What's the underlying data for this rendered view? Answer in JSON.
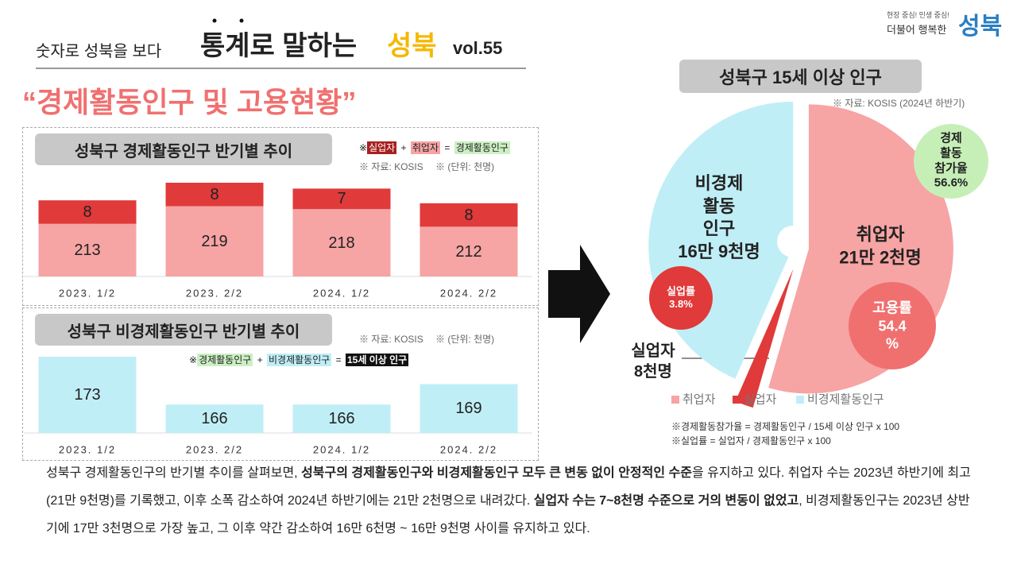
{
  "header": {
    "prefix": "숫자로 성북을 보다",
    "title1": "통계로 말하는",
    "title2": "성북",
    "vol": "vol.55",
    "logo_slogan": "현장 중심! 민생 중심!",
    "logo_text": "더불어 행복한",
    "logo_name": "성북"
  },
  "subtitle": "“경제활동인구 및 고용현황”",
  "chart_data": [
    {
      "type": "bar",
      "stacked": true,
      "title": "성북구 경제활동인구 반기별 추이",
      "notes": [
        "※ 자료: KOSIS",
        "※ (단위: 천명)"
      ],
      "formula": {
        "prefix": "※",
        "terms": [
          "실업자",
          "취업자",
          "경제활동인구"
        ],
        "ops": [
          "+",
          "="
        ]
      },
      "categories": [
        "2023. 1/2",
        "2023. 2/2",
        "2024. 1/2",
        "2024. 2/2"
      ],
      "series": [
        {
          "name": "취업자",
          "color": "#f7a4a4",
          "values": [
            213,
            219,
            218,
            212
          ]
        },
        {
          "name": "실업자",
          "color": "#e03a3a",
          "values": [
            8,
            8,
            7,
            8
          ]
        }
      ]
    },
    {
      "type": "bar",
      "title": "성북구 비경제활동인구 반기별 추이",
      "notes": [
        "※ 자료: KOSIS",
        "※ (단위: 천명)"
      ],
      "formula": {
        "prefix": "※",
        "terms": [
          "경제활동인구",
          "비경제활동인구",
          "15세 이상 인구"
        ],
        "ops": [
          "+",
          "="
        ]
      },
      "categories": [
        "2023. 1/2",
        "2023. 2/2",
        "2024. 1/2",
        "2024. 2/2"
      ],
      "values": [
        173,
        166,
        166,
        169
      ],
      "color": "#c0eef6"
    },
    {
      "type": "pie",
      "title": "성북구 15세 이상 인구",
      "source": "※ 자료: KOSIS (2024년 하반기)",
      "categories": [
        "취업자",
        "실업자",
        "비경제활동인구"
      ],
      "values": [
        212,
        8,
        169
      ],
      "value_labels": [
        "취업자\n21만 2천명",
        "실업자\n8천명",
        "비경제\n활동\n인구\n16만 9천명"
      ],
      "colors": [
        "#f7a4a4",
        "#e03a3a",
        "#c0eef6"
      ],
      "annotations": [
        "경제\n활동\n참가율\n56.6%",
        "고용률\n54.4\n%",
        "실업률\n3.8%"
      ],
      "footnotes": [
        "※경제활동참가율 = 경제활동인구 / 15세 이상 인구 x 100",
        "※실업률 = 실업자 / 경제활동인구 x 100"
      ]
    }
  ],
  "paragraph": [
    {
      "text": "성북구 경제활동인구의 반기별 추이를 살펴보면, ",
      "bold": false
    },
    {
      "text": "성북구의 경제활동인구와 비경제활동인구 모두 큰 변동 없이 안정적인 수준",
      "bold": true
    },
    {
      "text": "을 유지하고 있다. 취업자 수는 2023년 하반기에 최고(21만 9천명)를 기록했고, 이후 소폭 감소하여 2024년 하반기에는 21만 2천명으로 내려갔다. ",
      "bold": false
    },
    {
      "text": "실업자 수는 7~8천명 수준으로 거의 변동이 없었고",
      "bold": true
    },
    {
      "text": ", 비경제활동인구는 2023년 상반기에 17만 3천명으로 가장 높고, 그 이후 약간 감소하여 16만 6천명 ~ 16만 9천명 사이를 유지하고 있다.",
      "bold": false
    }
  ]
}
